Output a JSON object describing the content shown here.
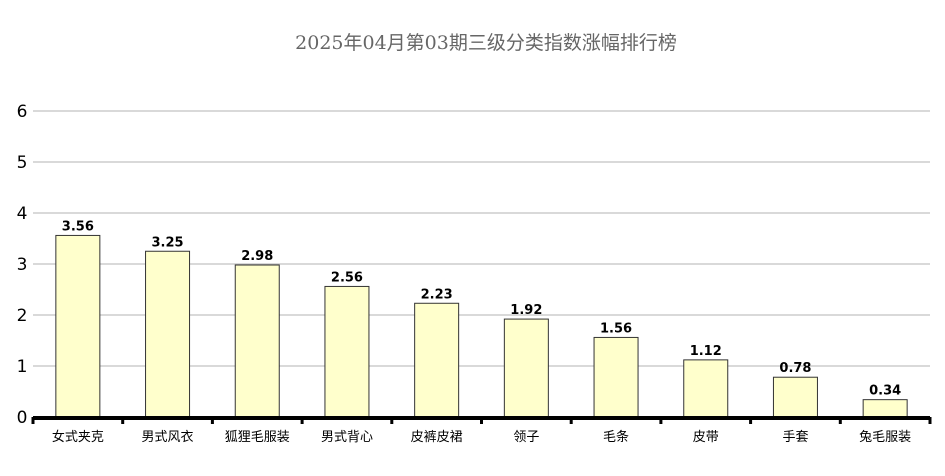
{
  "chart_data": {
    "type": "bar",
    "title": "2025年04月第03期三级分类指数涨幅排行榜",
    "categories": [
      "女式夹克",
      "男式风衣",
      "狐狸毛服装",
      "男式背心",
      "皮裤皮裙",
      "领子",
      "毛条",
      "皮带",
      "手套",
      "兔毛服装"
    ],
    "values": [
      3.56,
      3.25,
      2.98,
      2.56,
      2.23,
      1.92,
      1.56,
      1.12,
      0.78,
      0.34
    ],
    "data_labels": [
      "3.56",
      "3.25",
      "2.98",
      "2.56",
      "2.23",
      "1.92",
      "1.56",
      "1.12",
      "0.78",
      "0.34"
    ],
    "xlabel": "",
    "ylabel": "",
    "ylim": [
      0,
      6
    ],
    "yticks": [
      "0",
      "1",
      "2",
      "3",
      "4",
      "5",
      "6"
    ],
    "grid": true,
    "legend": "none",
    "colors": {
      "bar_fill": "#ffffcc",
      "bar_stroke": "#333333",
      "grid": "#b3b3b3",
      "axis": "#000000",
      "title": "#666666"
    }
  }
}
